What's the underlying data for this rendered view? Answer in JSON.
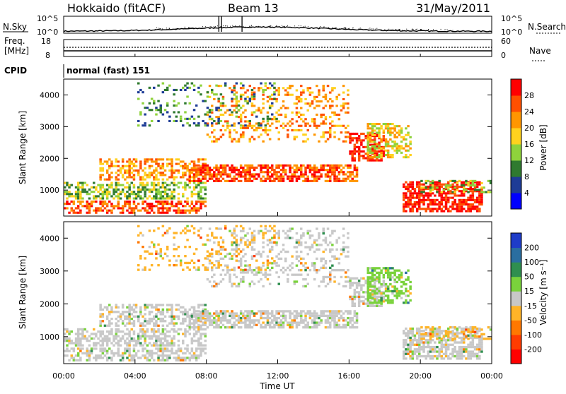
{
  "header": {
    "station": "Hokkaido (fitACF)",
    "beam": "Beam 13",
    "date": "31/May/2011"
  },
  "noise_panel": {
    "left_label": "N.Sky",
    "right_label": "N.Search",
    "left_ticks": [
      "10^5",
      "10^0"
    ],
    "right_ticks": [
      "10^5",
      "10^0"
    ]
  },
  "freq_panel": {
    "left_label_line1": "Freq.",
    "left_label_line2": "[MHz]",
    "right_label": "Nave",
    "left_ticks": [
      "18",
      "8"
    ],
    "right_ticks": [
      "60",
      "0"
    ]
  },
  "cpid": {
    "label": "CPID",
    "value": "normal (fast) 151"
  },
  "power_panel": {
    "ylabel": "Slant Range [km]",
    "yticks": [
      1000,
      2000,
      3000,
      4000
    ],
    "colorbar_label": "Power [dB]",
    "colorbar_ticks": [
      "28",
      "24",
      "20",
      "16",
      "12",
      "8",
      "4"
    ],
    "colors": [
      "#0000ff",
      "#1e3c96",
      "#2f7a2f",
      "#8fd23c",
      "#ffd21e",
      "#ff9600",
      "#ff5000",
      "#ff0000"
    ]
  },
  "velocity_panel": {
    "ylabel": "Slant Range [km]",
    "yticks": [
      1000,
      2000,
      3000,
      4000
    ],
    "colorbar_label": "Velocity [m s⁻¹]",
    "colorbar_ticks": [
      "200",
      "100",
      "50",
      "15",
      "-15",
      "-50",
      "-100",
      "-200"
    ],
    "colors": [
      "#1e3cc8",
      "#2a6ea0",
      "#2f8f4f",
      "#7ad23c",
      "#c8c8c8",
      "#ffb428",
      "#ff7800",
      "#ff3c00",
      "#ff0000"
    ]
  },
  "xaxis": {
    "label": "Time UT",
    "ticks": [
      "00:00",
      "04:00",
      "08:00",
      "12:00",
      "16:00",
      "20:00",
      "00:00"
    ]
  },
  "chart_data": [
    {
      "type": "heatmap",
      "title": "Hokkaido (fitACF)",
      "quantity": "Power [dB]",
      "xlabel": "Time UT",
      "ylabel": "Slant Range [km]",
      "xlim": [
        "00:00",
        "24:00"
      ],
      "ylim": [
        180,
        4500
      ],
      "zlim": [
        0,
        30
      ],
      "features": [
        {
          "time_range": [
            "00:00",
            "08:00"
          ],
          "range_km": [
            400,
            1200
          ],
          "power_db": 20
        },
        {
          "time_range": [
            "02:00",
            "08:00"
          ],
          "range_km": [
            1400,
            2000
          ],
          "power_db": 22
        },
        {
          "time_range": [
            "07:00",
            "16:00"
          ],
          "range_km": [
            1300,
            1800
          ],
          "power_db": 24
        },
        {
          "time_range": [
            "08:00",
            "16:00"
          ],
          "range_km": [
            2500,
            4200
          ],
          "power_db": 20
        },
        {
          "time_range": [
            "16:00",
            "18:00"
          ],
          "range_km": [
            2000,
            2800
          ],
          "power_db": 26
        },
        {
          "time_range": [
            "19:00",
            "23:00"
          ],
          "range_km": [
            400,
            1300
          ],
          "power_db": 28
        }
      ]
    },
    {
      "type": "heatmap",
      "title": "Beam 13",
      "quantity": "Velocity [m s-1]",
      "xlabel": "Time UT",
      "ylabel": "Slant Range [km]",
      "xlim": [
        "00:00",
        "24:00"
      ],
      "ylim": [
        180,
        4500
      ],
      "zlim": [
        -200,
        200
      ],
      "features": [
        {
          "time_range": [
            "00:00",
            "24:00"
          ],
          "range_km": [
            400,
            2000
          ],
          "velocity_ms": 0
        },
        {
          "time_range": [
            "17:00",
            "19:00"
          ],
          "range_km": [
            2000,
            3100
          ],
          "velocity_ms": 30
        },
        {
          "time_range": [
            "20:00",
            "24:00"
          ],
          "range_km": [
            300,
            600
          ],
          "velocity_ms": -50
        }
      ]
    }
  ]
}
